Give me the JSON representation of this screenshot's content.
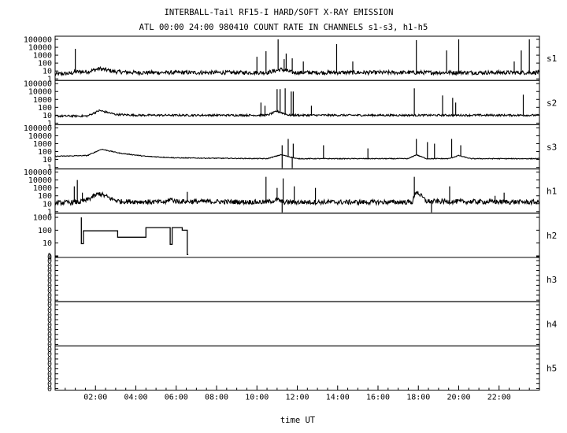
{
  "chart_data": {
    "type": "line",
    "title": "INTERBALL-Tail RF15-I HARD/SOFT X-RAY EMISSION",
    "subtitle": "ATL 00:00 24:00 980410  COUNT RATE IN CHANNELS s1-s3, h1-h5",
    "xlabel": "time UT",
    "xlim": [
      0,
      24
    ],
    "x_tick_labels": [
      "02:00",
      "04:00",
      "06:00",
      "08:00",
      "10:00",
      "12:00",
      "14:00",
      "16:00",
      "18:00",
      "20:00",
      "22:00"
    ],
    "x_tick_hours": [
      2,
      4,
      6,
      8,
      10,
      12,
      14,
      16,
      18,
      20,
      22
    ],
    "y_scale": "log",
    "grid": false,
    "line_color": "#000000",
    "panels": [
      {
        "name": "s1",
        "ylim_exp": [
          0,
          5.2
        ],
        "y_tick_labels": [
          "100000",
          "10000",
          "1000",
          "100",
          "10",
          "1"
        ],
        "baseline": [
          [
            0,
            0.6
          ],
          [
            0.8,
            0.7
          ],
          [
            1.0,
            0.9
          ],
          [
            1.6,
            0.9
          ],
          [
            2.2,
            1.3
          ],
          [
            3.0,
            0.9
          ],
          [
            4.0,
            0.8
          ],
          [
            10.5,
            0.8
          ],
          [
            11.2,
            1.2
          ],
          [
            11.8,
            0.8
          ],
          [
            24,
            0.8
          ]
        ],
        "noise": 0.25,
        "spikes": [
          [
            1.0,
            3.8
          ],
          [
            10.0,
            2.8
          ],
          [
            10.45,
            3.5
          ],
          [
            11.05,
            5.0
          ],
          [
            11.35,
            2.5
          ],
          [
            11.45,
            3.2
          ],
          [
            11.75,
            2.6
          ],
          [
            12.3,
            2.2
          ],
          [
            13.95,
            4.4
          ],
          [
            14.75,
            2.2
          ],
          [
            17.9,
            4.9
          ],
          [
            19.4,
            3.6
          ],
          [
            20.0,
            5.0
          ],
          [
            22.75,
            2.2
          ],
          [
            23.1,
            3.6
          ],
          [
            23.5,
            5.0
          ]
        ]
      },
      {
        "name": "s2",
        "ylim_exp": [
          0,
          5.2
        ],
        "y_tick_labels": [
          "100000",
          "10000",
          "1000",
          "100",
          "10",
          "1"
        ],
        "baseline": [
          [
            0,
            0.9
          ],
          [
            1.6,
            0.9
          ],
          [
            2.2,
            1.6
          ],
          [
            3.0,
            1.1
          ],
          [
            4.0,
            1.0
          ],
          [
            10.5,
            1.0
          ],
          [
            11.0,
            1.5
          ],
          [
            11.6,
            1.0
          ],
          [
            24,
            1.0
          ]
        ],
        "noise": 0.12,
        "spikes": [
          [
            10.2,
            2.6
          ],
          [
            10.4,
            2.2
          ],
          [
            11.0,
            4.3
          ],
          [
            11.15,
            4.3
          ],
          [
            11.4,
            4.4
          ],
          [
            11.7,
            4.0
          ],
          [
            11.8,
            4.0
          ],
          [
            12.7,
            2.2
          ],
          [
            17.8,
            4.4
          ],
          [
            19.2,
            3.5
          ],
          [
            19.7,
            3.2
          ],
          [
            19.85,
            2.6
          ],
          [
            23.2,
            3.6
          ]
        ]
      },
      {
        "name": "s3",
        "ylim_exp": [
          0,
          5.2
        ],
        "y_tick_labels": [
          "100000",
          "10000",
          "1000",
          "100",
          "10",
          "1"
        ],
        "baseline": [
          [
            0,
            1.4
          ],
          [
            1.6,
            1.5
          ],
          [
            2.3,
            2.3
          ],
          [
            3.2,
            1.8
          ],
          [
            4.5,
            1.4
          ],
          [
            6.0,
            1.2
          ],
          [
            10.5,
            1.1
          ],
          [
            11.2,
            1.6
          ],
          [
            12.0,
            1.1
          ],
          [
            17.5,
            1.1
          ],
          [
            17.9,
            1.6
          ],
          [
            18.4,
            1.1
          ],
          [
            19.5,
            1.1
          ],
          [
            20.0,
            1.5
          ],
          [
            20.6,
            1.1
          ],
          [
            24,
            1.1
          ]
        ],
        "noise": 0.05,
        "spikes": [
          [
            11.25,
            -0.6
          ],
          [
            11.25,
            2.8
          ],
          [
            11.55,
            3.6
          ],
          [
            11.75,
            -0.4
          ],
          [
            11.8,
            3.0
          ],
          [
            13.3,
            2.8
          ],
          [
            15.5,
            2.4
          ],
          [
            17.9,
            3.6
          ],
          [
            18.45,
            3.2
          ],
          [
            18.8,
            3.0
          ],
          [
            19.65,
            3.6
          ],
          [
            20.1,
            2.8
          ]
        ]
      },
      {
        "name": "h1",
        "ylim_exp": [
          0,
          5.2
        ],
        "y_tick_labels": [
          "100000",
          "10000",
          "1000",
          "100",
          "10",
          "1"
        ],
        "baseline": [
          [
            0,
            1.1
          ],
          [
            1.2,
            1.2
          ],
          [
            1.5,
            1.4
          ],
          [
            2.2,
            2.3
          ],
          [
            2.8,
            1.6
          ],
          [
            3.2,
            1.3
          ],
          [
            5.5,
            1.2
          ],
          [
            5.7,
            1.6
          ],
          [
            6.0,
            1.3
          ],
          [
            10.5,
            1.2
          ],
          [
            11.0,
            1.5
          ],
          [
            11.3,
            1.2
          ],
          [
            17.7,
            1.2
          ],
          [
            17.9,
            2.6
          ],
          [
            18.4,
            1.3
          ],
          [
            24,
            1.2
          ]
        ],
        "noise": 0.3,
        "spikes": [
          [
            0.95,
            3.2
          ],
          [
            1.1,
            4.0
          ],
          [
            1.35,
            2.4
          ],
          [
            6.55,
            2.5
          ],
          [
            10.45,
            4.4
          ],
          [
            11.0,
            3.0
          ],
          [
            11.3,
            4.2
          ],
          [
            11.25,
            -0.6
          ],
          [
            11.85,
            3.2
          ],
          [
            12.9,
            3.0
          ],
          [
            17.8,
            4.4
          ],
          [
            18.65,
            -0.6
          ],
          [
            19.55,
            3.2
          ],
          [
            21.8,
            2.0
          ],
          [
            22.25,
            2.4
          ]
        ]
      },
      {
        "name": "h2",
        "ylim_exp": [
          0,
          3.2
        ],
        "y_tick_labels": [
          "1000",
          "100",
          "10",
          "1",
          "0"
        ],
        "steps": [
          [
            1.3,
            3.0
          ],
          [
            1.3,
            0.95
          ],
          [
            1.4,
            0.95
          ],
          [
            1.4,
            1.95
          ],
          [
            3.1,
            1.95
          ],
          [
            3.1,
            1.45
          ],
          [
            4.5,
            1.45
          ],
          [
            4.5,
            2.2
          ],
          [
            5.7,
            2.2
          ],
          [
            5.7,
            0.9
          ],
          [
            5.8,
            0.9
          ],
          [
            5.8,
            2.2
          ],
          [
            6.3,
            2.2
          ],
          [
            6.3,
            2.0
          ],
          [
            6.55,
            2.0
          ],
          [
            6.55,
            0.1
          ],
          [
            6.6,
            0.1
          ]
        ]
      },
      {
        "name": "h3",
        "ylim_exp": [
          0,
          1
        ],
        "y_tick_labels": [
          "0",
          "0",
          "0",
          "0",
          "0",
          "0",
          "0",
          "0",
          "0"
        ]
      },
      {
        "name": "h4",
        "ylim_exp": [
          0,
          1
        ],
        "y_tick_labels": [
          "0",
          "0",
          "0",
          "0",
          "0",
          "0",
          "0",
          "0",
          "0"
        ]
      },
      {
        "name": "h5",
        "ylim_exp": [
          0,
          1
        ],
        "y_tick_labels": [
          "0",
          "0",
          "0",
          "0",
          "0",
          "0",
          "0",
          "0",
          "0"
        ]
      }
    ]
  }
}
